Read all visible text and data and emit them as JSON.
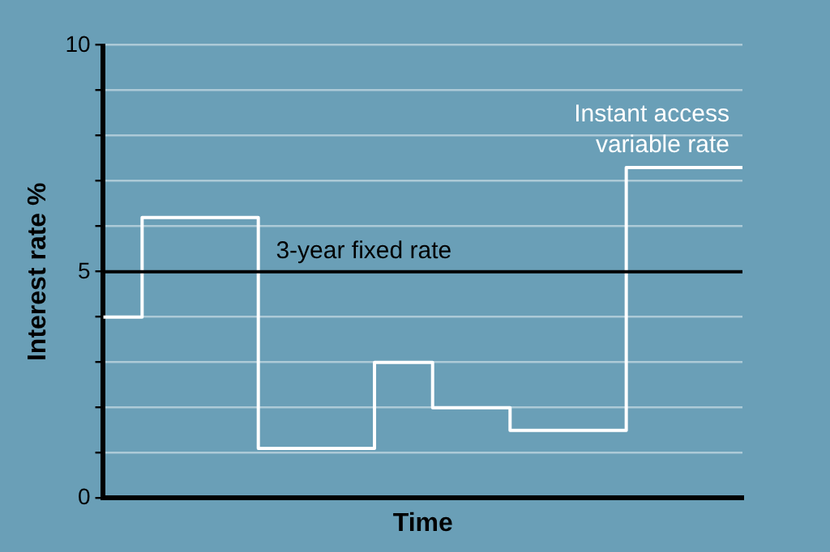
{
  "chart_data": {
    "type": "step",
    "xlabel": "Time",
    "ylabel": "Interest rate %",
    "categories": [
      null,
      null,
      null,
      null,
      null,
      null,
      null,
      null,
      null,
      null,
      null,
      null,
      null,
      null,
      null,
      null,
      null,
      null,
      null,
      null,
      null,
      null,
      null,
      null,
      null,
      null,
      null,
      null,
      null,
      null,
      null,
      null,
      null,
      null
    ],
    "series": [
      {
        "name": "Instant access variable rate",
        "color": "#ffffff",
        "values": [
          4,
          4,
          6.2,
          6.2,
          6.2,
          6.2,
          6.2,
          6.2,
          1.1,
          1.1,
          1.1,
          1.1,
          1.1,
          1.1,
          3,
          3,
          3,
          2,
          2,
          2,
          2,
          1.5,
          1.5,
          1.5,
          1.5,
          1.5,
          1.5,
          7.3,
          7.3,
          7.3,
          7.3,
          7.3,
          7.3,
          7.3
        ]
      }
    ],
    "ylim": [
      0,
      10
    ],
    "yticks": [
      0,
      {
        "value": 1,
        "label": null
      },
      {
        "value": 2,
        "label": null
      },
      {
        "value": 3,
        "label": null
      },
      {
        "value": 4,
        "label": null
      },
      5,
      {
        "value": 6,
        "label": null
      },
      {
        "value": 7,
        "label": null
      },
      {
        "value": 8,
        "label": null
      },
      {
        "value": 9,
        "label": null
      },
      10
    ],
    "ref_lines": [
      {
        "axis": "y",
        "value": 5,
        "label": "3-year fixed rate",
        "color": "#000000"
      }
    ],
    "grid": "y",
    "legend": false,
    "tick_labels": "y"
  }
}
